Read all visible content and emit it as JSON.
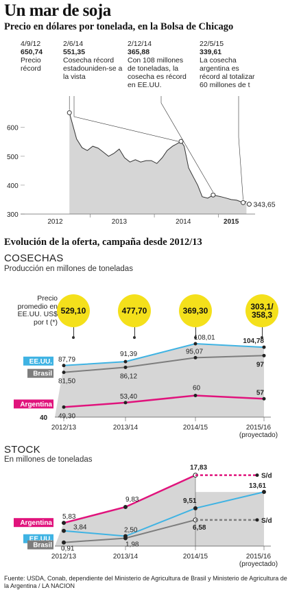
{
  "title": "Un mar de soja",
  "subtitle": "Precio en dólares por tonelada, en la Bolsa de Chicago",
  "colors": {
    "argentina": "#e0137c",
    "eeuu": "#3fb3e3",
    "brasil": "#7d7d7d",
    "bubble": "#f4e01b",
    "area": "#d6d6d6"
  },
  "price_annotations": [
    {
      "date": "4/9/12",
      "value": "650,74",
      "text": "Precio récord"
    },
    {
      "date": "2/6/14",
      "value": "551,35",
      "text": "Cosecha récord estadouniden-se a la vista"
    },
    {
      "date": "2/12/14",
      "value": "365,88",
      "text": "Con 108 millones de toneladas, la cosecha es récord en EE.UU."
    },
    {
      "date": "22/5/15",
      "value": "339,61",
      "text": "La cosecha argentina es récord al totalizar 60 millones de t"
    }
  ],
  "price_last_label": "343,65",
  "supply_title": "Evolución de la oferta, campaña desde 2012/13",
  "cosechas": {
    "heading": "COSECHAS",
    "note": "Producción en millones de toneladas",
    "price_axis_text": "Precio promedio en EE.UU. US$ por t (*)",
    "avg_prices": [
      "529,10",
      "477,70",
      "369,30",
      "303,1/ 358,3"
    ],
    "series_labels": {
      "eeuu": "EE.UU.",
      "brasil": "Brasil",
      "argentina": "Argentina"
    }
  },
  "stock": {
    "heading": "STOCK",
    "note": "En millones de toneladas",
    "sd_label": "S/d",
    "series_labels": {
      "argentina": "Argentina",
      "eeuu": "EE.UU.",
      "brasil": "Brasil"
    }
  },
  "footer": "Fuente: USDA, Conab, dependiente del Ministerio de Agricultura de Brasil y Ministerio de Agricultura de la Argentina / LA NACION",
  "chart_data": [
    {
      "type": "area",
      "title": "Un mar de soja",
      "subtitle": "Precio en dólares por tonelada, en la Bolsa de Chicago",
      "x_ticks": [
        "2012",
        "2013",
        "2014",
        "2015"
      ],
      "y_ticks": [
        300,
        400,
        500,
        600
      ],
      "ylim": [
        300,
        680
      ],
      "x": [
        "2012-09-04",
        "2012-10-15",
        "2012-11-15",
        "2012-12-15",
        "2013-01-15",
        "2013-02-15",
        "2013-03-15",
        "2013-04-15",
        "2013-05-15",
        "2013-06-15",
        "2013-07-15",
        "2013-08-15",
        "2013-09-15",
        "2013-10-15",
        "2013-11-15",
        "2013-12-15",
        "2014-01-15",
        "2014-02-15",
        "2014-03-15",
        "2014-04-15",
        "2014-05-15",
        "2014-06-02",
        "2014-06-20",
        "2014-07-15",
        "2014-08-10",
        "2014-09-05",
        "2014-10-01",
        "2014-11-01",
        "2014-12-02",
        "2015-01-15",
        "2015-02-15",
        "2015-03-15",
        "2015-04-15",
        "2015-05-22",
        "2015-06-10"
      ],
      "series": [
        {
          "values": [
            650.74,
            560,
            530,
            520,
            535,
            528,
            515,
            500,
            510,
            525,
            495,
            480,
            488,
            480,
            485,
            485,
            475,
            495,
            520,
            535,
            545,
            551.35,
            535,
            460,
            430,
            400,
            360,
            355,
            365.88,
            360,
            355,
            350,
            348,
            339.61,
            343.65
          ]
        }
      ],
      "annotations": [
        {
          "date": "4/9/12",
          "value": 650.74
        },
        {
          "date": "2/6/14",
          "value": 551.35
        },
        {
          "date": "2/12/14",
          "value": 365.88
        },
        {
          "date": "22/5/15",
          "value": 339.61
        }
      ],
      "last_value": 343.65,
      "grid": false
    },
    {
      "type": "line",
      "title": "COSECHAS",
      "subtitle": "Producción en millones de toneladas",
      "categories": [
        "2012/13",
        "2013/14",
        "2014/15",
        "2015/16 (proyectado)"
      ],
      "series": [
        {
          "name": "EE.UU.",
          "values": [
            87.79,
            91.39,
            108.01,
            104.78
          ]
        },
        {
          "name": "Brasil",
          "values": [
            81.5,
            86.12,
            95.07,
            97
          ]
        },
        {
          "name": "Argentina",
          "values": [
            49.3,
            53.4,
            60,
            57
          ]
        }
      ],
      "value_labels": {
        "EE.UU.": [
          "87,79",
          "91,39",
          "108,01",
          "104,78"
        ],
        "Brasil": [
          "81,50",
          "86,12",
          "95,07",
          "97"
        ],
        "Argentina": [
          "49,30",
          "53,40",
          "60",
          "57"
        ]
      },
      "price_bubbles": [
        "529,10",
        "477,70",
        "369,30",
        "303,1/ 358,3"
      ],
      "y_ticks": [
        40
      ],
      "ylim": [
        40,
        115
      ]
    },
    {
      "type": "line",
      "title": "STOCK",
      "subtitle": "En millones de toneladas",
      "categories": [
        "2012/13",
        "2013/14",
        "2014/15",
        "2015/16 (proyectado)"
      ],
      "series": [
        {
          "name": "Argentina",
          "values": [
            5.83,
            9.83,
            17.83,
            null
          ]
        },
        {
          "name": "EE.UU.",
          "values": [
            3.84,
            2.5,
            9.51,
            13.61
          ]
        },
        {
          "name": "Brasil",
          "values": [
            0.91,
            1.98,
            6.58,
            null
          ]
        }
      ],
      "value_labels": {
        "Argentina": [
          "5,83",
          "9,83",
          "17,83",
          "S/d"
        ],
        "EE.UU.": [
          "3,84",
          "2,50",
          "9,51",
          "13,61"
        ],
        "Brasil": [
          "0,91",
          "1,98",
          "6,58",
          "S/d"
        ]
      },
      "y_ticks": [
        0
      ],
      "ylim": [
        0,
        20
      ]
    }
  ]
}
